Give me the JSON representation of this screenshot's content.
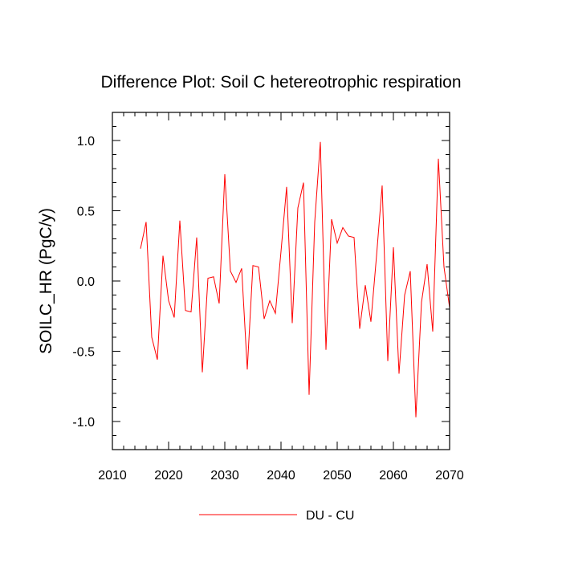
{
  "chart_data": {
    "type": "line",
    "title": "Difference Plot: Soil C hetereotrophic respiration",
    "xlabel": "",
    "ylabel": "SOILC_HR  (PgC/y)",
    "xlim": [
      2010,
      2070
    ],
    "ylim": [
      -1.2,
      1.2
    ],
    "x_ticks": [
      2010,
      2020,
      2030,
      2040,
      2050,
      2060,
      2070
    ],
    "x_tick_labels": [
      "2010",
      "2020",
      "2030",
      "2040",
      "2050",
      "2060",
      "2070"
    ],
    "y_ticks": [
      -1.0,
      -0.5,
      0.0,
      0.5,
      1.0
    ],
    "y_tick_labels": [
      "-1.0",
      "-0.5",
      "0.0",
      "0.5",
      "1.0"
    ],
    "grid": false,
    "legend_position": "bottom-center",
    "series": [
      {
        "name": "DU - CU",
        "color": "#ff0000",
        "x": [
          2015,
          2016,
          2017,
          2018,
          2019,
          2020,
          2021,
          2022,
          2023,
          2024,
          2025,
          2026,
          2027,
          2028,
          2029,
          2030,
          2031,
          2032,
          2033,
          2034,
          2035,
          2036,
          2037,
          2038,
          2039,
          2040,
          2041,
          2042,
          2043,
          2044,
          2045,
          2046,
          2047,
          2048,
          2049,
          2050,
          2051,
          2052,
          2053,
          2054,
          2055,
          2056,
          2057,
          2058,
          2059,
          2060,
          2061,
          2062,
          2063,
          2064,
          2065,
          2066,
          2067,
          2068,
          2069,
          2070
        ],
        "y": [
          0.23,
          0.42,
          -0.4,
          -0.56,
          0.18,
          -0.14,
          -0.26,
          0.43,
          -0.21,
          -0.22,
          0.31,
          -0.65,
          0.02,
          0.03,
          -0.16,
          0.76,
          0.07,
          -0.01,
          0.09,
          -0.63,
          0.11,
          0.1,
          -0.27,
          -0.14,
          -0.23,
          0.21,
          0.67,
          -0.3,
          0.52,
          0.7,
          -0.81,
          0.42,
          0.99,
          -0.49,
          0.44,
          0.27,
          0.38,
          0.32,
          0.31,
          -0.34,
          -0.03,
          -0.29,
          0.18,
          0.68,
          -0.57,
          0.24,
          -0.66,
          -0.1,
          0.07,
          -0.97,
          -0.15,
          0.12,
          -0.36,
          0.87,
          0.1,
          -0.19
        ]
      }
    ]
  }
}
